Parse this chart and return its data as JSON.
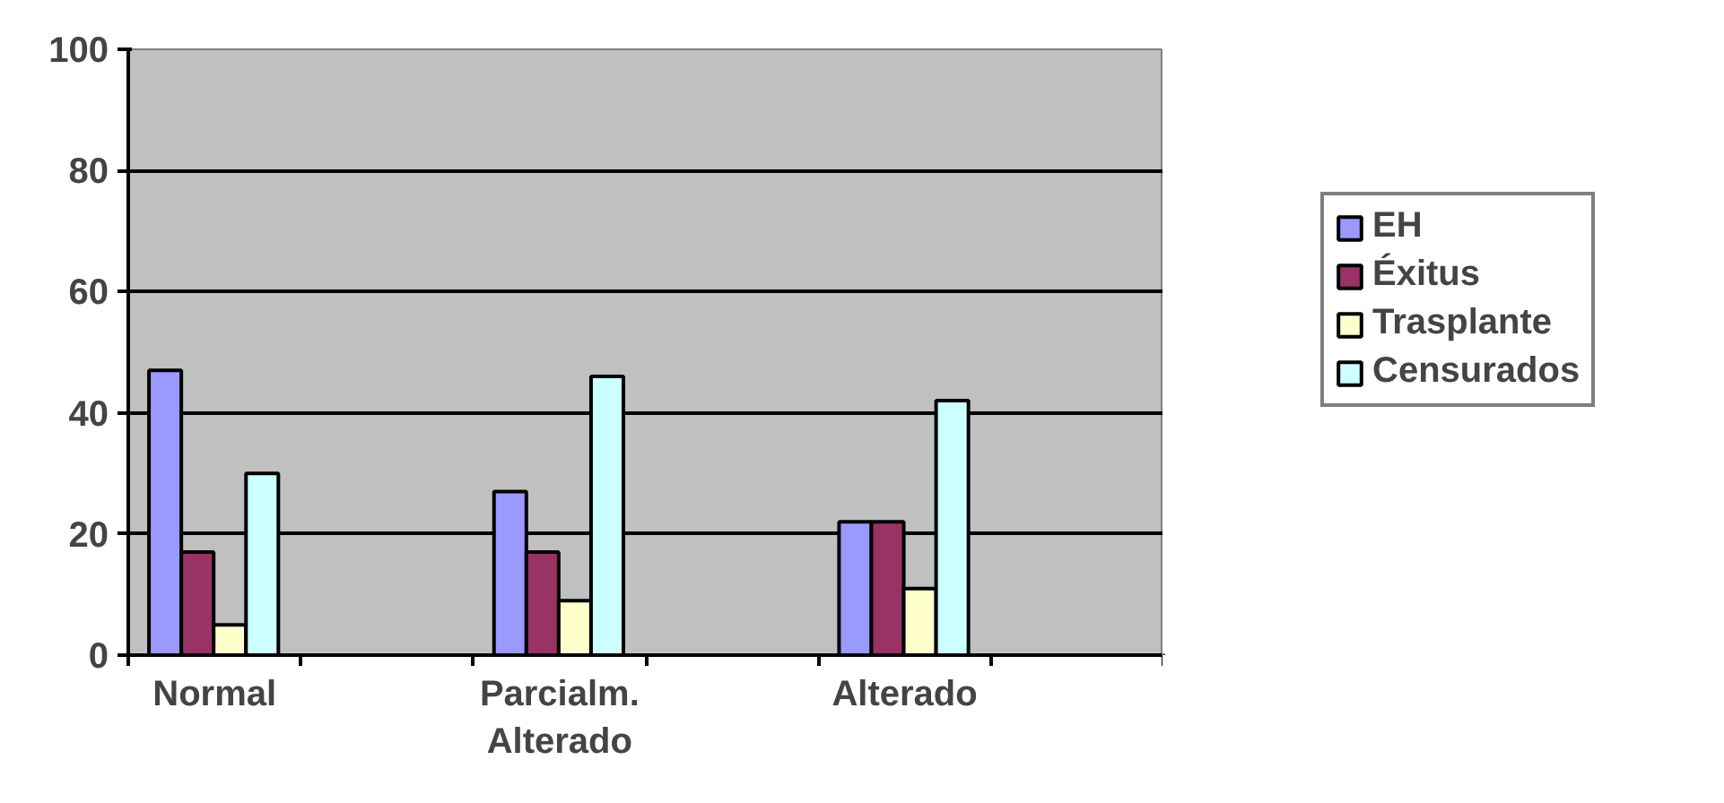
{
  "chart_data": {
    "type": "bar",
    "categories": [
      "Normal",
      null,
      "Parcialm. Alterado",
      null,
      "Alterado",
      null
    ],
    "series": [
      {
        "name": "EH",
        "color": "#9999ff",
        "values": [
          47,
          null,
          27,
          null,
          22,
          null
        ]
      },
      {
        "name": "Éxitus",
        "color": "#993366",
        "values": [
          17,
          null,
          17,
          null,
          22,
          null
        ]
      },
      {
        "name": "Trasplante",
        "color": "#ffffcc",
        "values": [
          5,
          null,
          9,
          null,
          11,
          null
        ]
      },
      {
        "name": "Censurados",
        "color": "#ccffff",
        "values": [
          30,
          null,
          46,
          null,
          42,
          null
        ]
      }
    ],
    "ylim": [
      0,
      100
    ],
    "yticks": [
      0,
      20,
      40,
      60,
      80,
      100
    ],
    "grid": "y",
    "legend": "right"
  }
}
